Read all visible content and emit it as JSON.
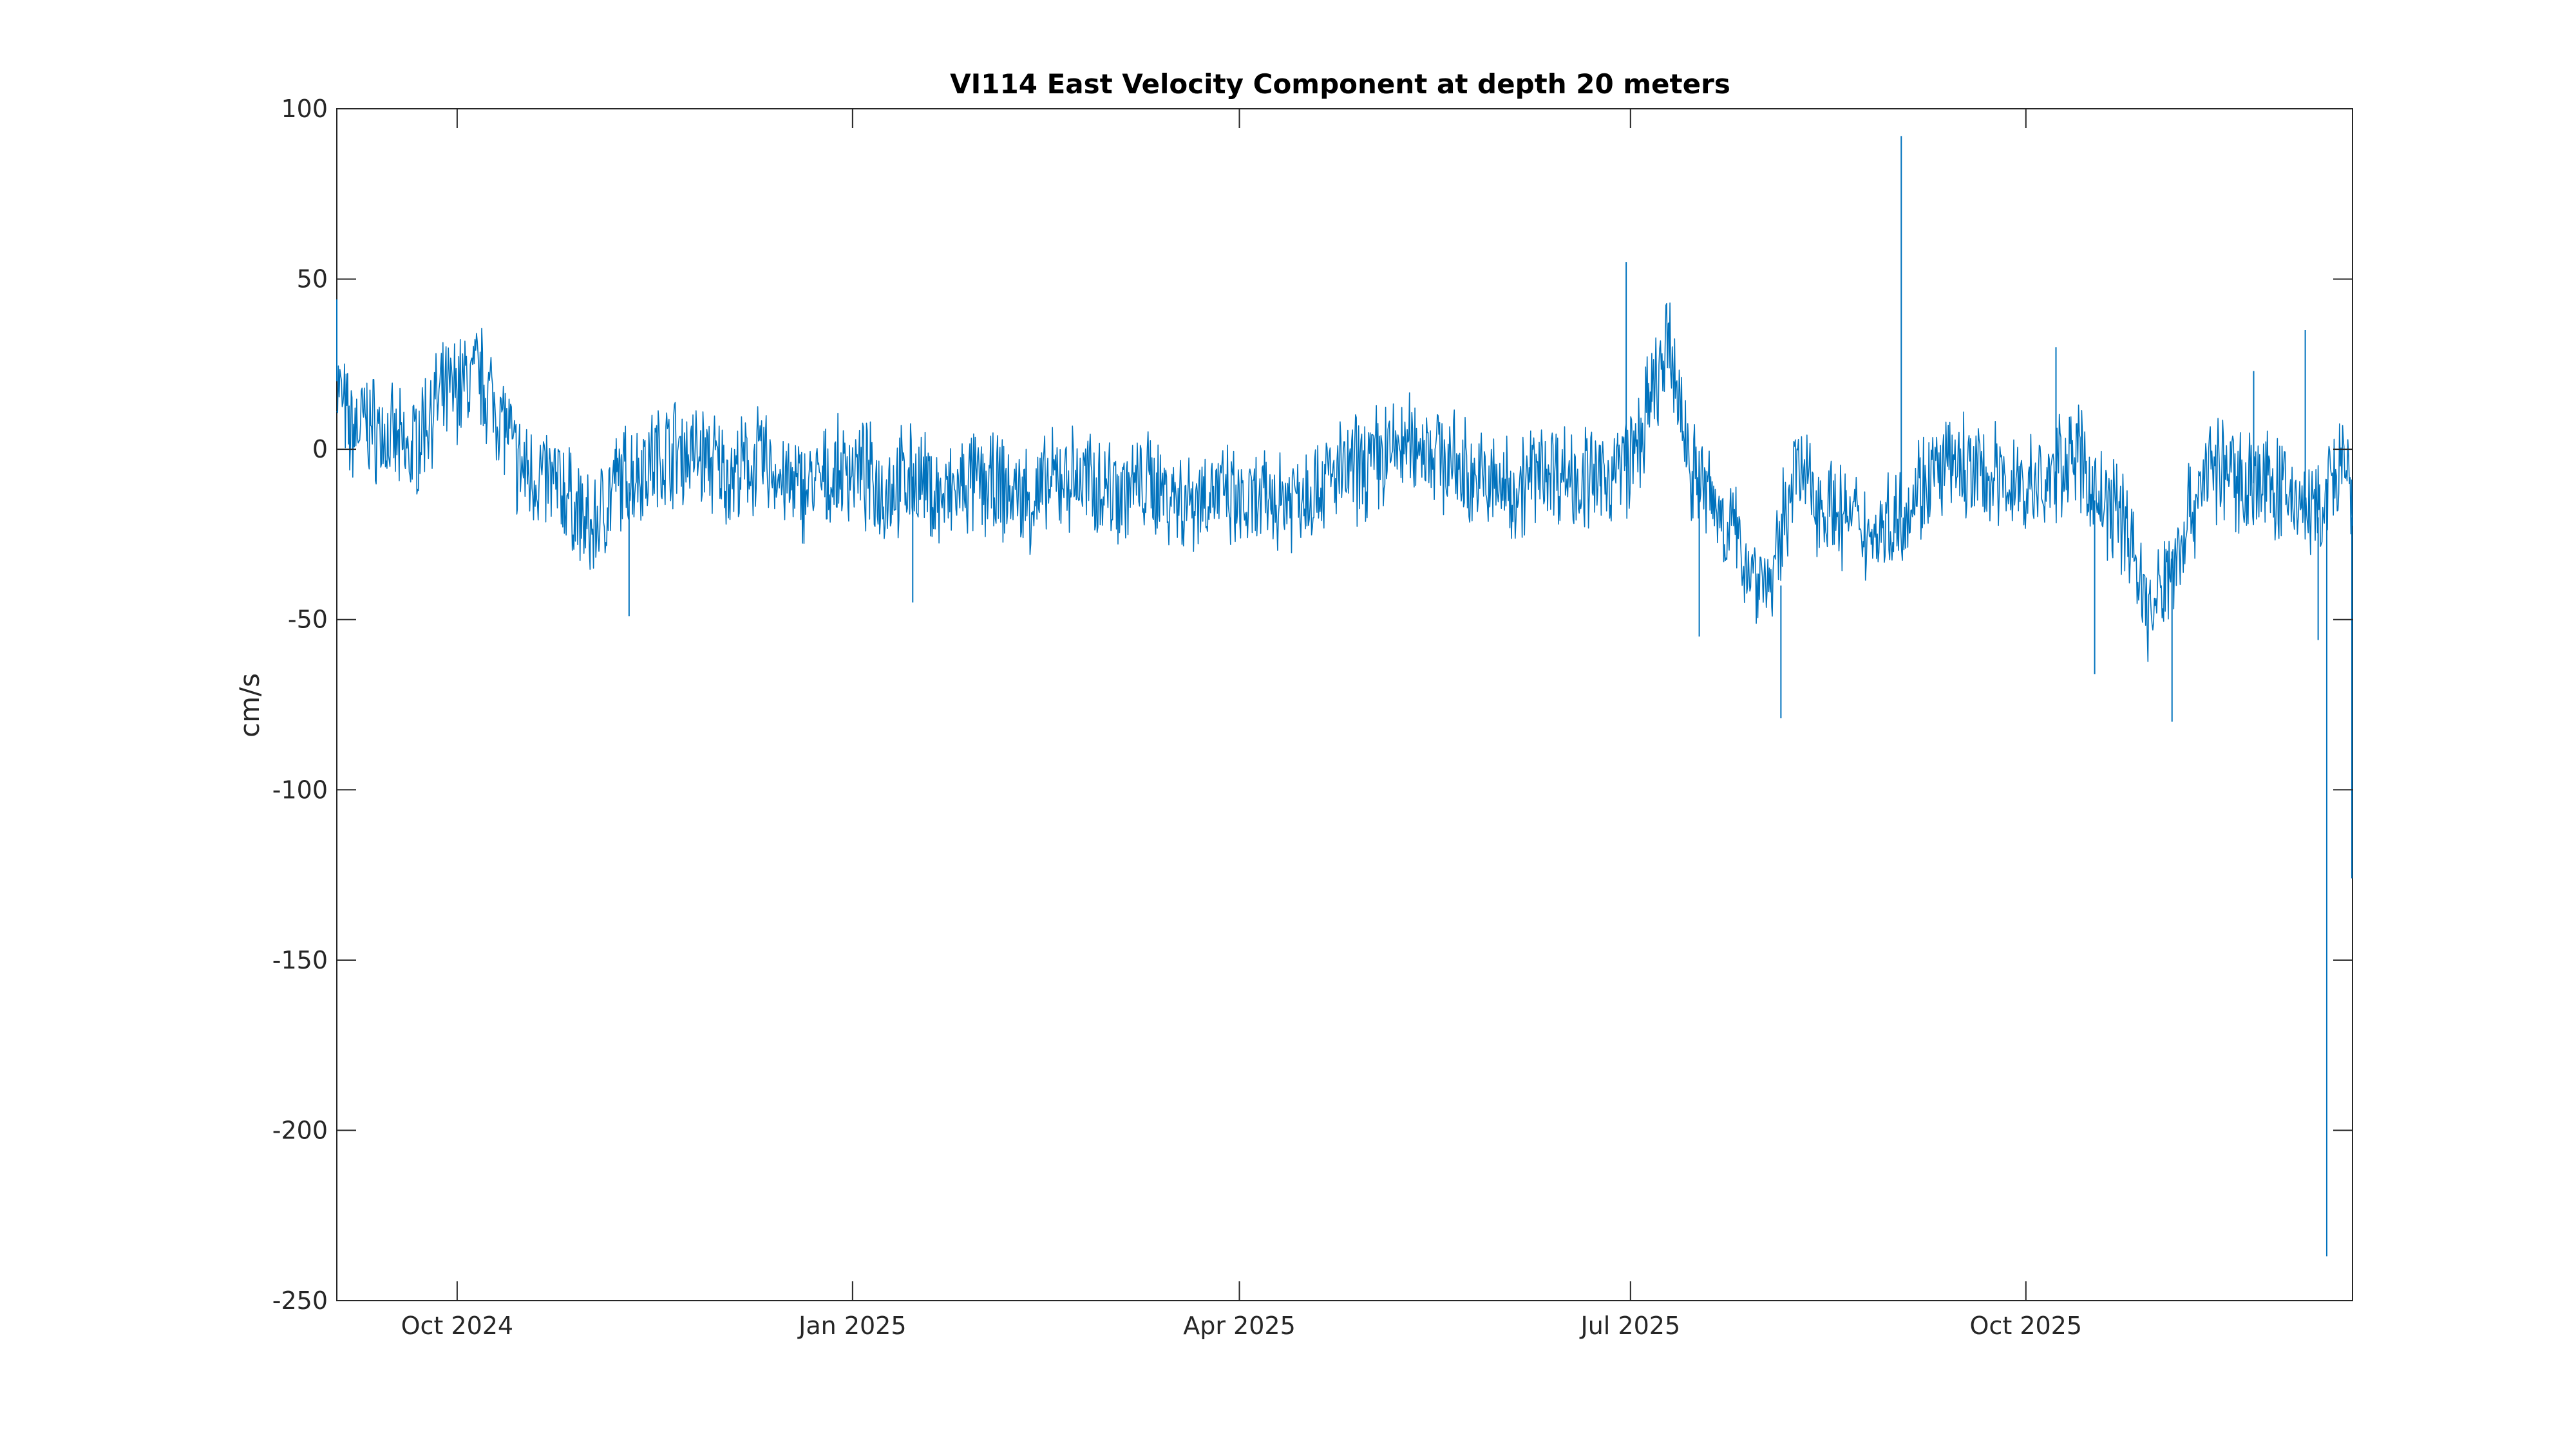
{
  "chart_data": {
    "type": "line",
    "title": "VI114 East Velocity Component at depth 20 meters",
    "xlabel": "",
    "ylabel": "cm/s",
    "xlim": [
      "2024-09-03",
      "2025-12-16"
    ],
    "ylim": [
      -250,
      100
    ],
    "x_ticks": [
      {
        "date": "2024-10-01",
        "label": "Oct 2024"
      },
      {
        "date": "2025-01-01",
        "label": "Jan 2025"
      },
      {
        "date": "2025-04-01",
        "label": "Apr 2025"
      },
      {
        "date": "2025-07-01",
        "label": "Jul 2025"
      },
      {
        "date": "2025-10-01",
        "label": "Oct 2025"
      }
    ],
    "y_ticks": [
      {
        "value": 100,
        "label": "100"
      },
      {
        "value": 50,
        "label": "50"
      },
      {
        "value": 0,
        "label": "0"
      },
      {
        "value": -50,
        "label": "-50"
      },
      {
        "value": -100,
        "label": "-100"
      },
      {
        "value": -150,
        "label": "-150"
      },
      {
        "value": -200,
        "label": "-200"
      },
      {
        "value": -250,
        "label": "-250"
      }
    ],
    "grid": false,
    "series_color": "#0072BD",
    "series": [
      {
        "x": [
          "2024-09-03",
          "2024-09-06",
          "2024-09-10",
          "2024-09-15",
          "2024-09-20",
          "2024-09-25",
          "2024-10-01",
          "2024-10-06",
          "2024-10-12",
          "2024-10-15",
          "2024-10-20",
          "2024-10-26",
          "2024-11-01",
          "2024-11-07",
          "2024-11-13",
          "2024-11-20",
          "2024-11-27",
          "2024-12-04",
          "2024-12-11",
          "2024-12-18",
          "2024-12-25",
          "2025-01-01",
          "2025-01-08",
          "2025-01-15",
          "2025-01-22",
          "2025-01-29",
          "2025-02-05",
          "2025-02-12",
          "2025-02-19",
          "2025-02-26",
          "2025-03-05",
          "2025-03-12",
          "2025-03-19",
          "2025-03-26",
          "2025-04-02",
          "2025-04-09",
          "2025-04-16",
          "2025-04-23",
          "2025-04-30",
          "2025-05-07",
          "2025-05-14",
          "2025-05-21",
          "2025-05-28",
          "2025-06-04",
          "2025-06-11",
          "2025-06-18",
          "2025-06-24",
          "2025-06-28",
          "2025-07-02",
          "2025-07-06",
          "2025-07-10",
          "2025-07-15",
          "2025-07-20",
          "2025-07-25",
          "2025-07-29",
          "2025-08-03",
          "2025-08-08",
          "2025-08-14",
          "2025-08-20",
          "2025-08-26",
          "2025-09-01",
          "2025-09-07",
          "2025-09-14",
          "2025-09-21",
          "2025-09-28",
          "2025-10-05",
          "2025-10-12",
          "2025-10-18",
          "2025-10-24",
          "2025-10-30",
          "2025-11-05",
          "2025-11-12",
          "2025-11-19",
          "2025-11-26",
          "2025-12-03",
          "2025-12-08",
          "2025-12-11",
          "2025-12-14",
          "2025-12-16"
        ],
        "y": [
          20,
          5,
          8,
          3,
          -2,
          12,
          18,
          22,
          8,
          -5,
          -8,
          -12,
          -25,
          -10,
          -5,
          0,
          -2,
          -8,
          -3,
          -12,
          -10,
          -5,
          -12,
          -8,
          -15,
          -10,
          -12,
          -15,
          -8,
          -10,
          -12,
          -10,
          -15,
          -12,
          -18,
          -15,
          -12,
          -8,
          -5,
          0,
          2,
          -5,
          -10,
          -12,
          -5,
          -8,
          -10,
          -5,
          -2,
          15,
          30,
          -5,
          -15,
          -25,
          -35,
          -40,
          -5,
          -15,
          -20,
          -25,
          -20,
          -10,
          -5,
          -8,
          -10,
          -12,
          0,
          -15,
          -20,
          -50,
          -30,
          -5,
          -8,
          -10,
          -15,
          -20,
          -10,
          -5,
          -20
        ],
        "spikes": [
          {
            "x": "2024-09-03",
            "y": 44
          },
          {
            "x": "2024-11-10",
            "y": -49
          },
          {
            "x": "2025-01-15",
            "y": -45
          },
          {
            "x": "2025-06-30",
            "y": 55
          },
          {
            "x": "2025-07-17",
            "y": -55
          },
          {
            "x": "2025-08-05",
            "y": -79
          },
          {
            "x": "2025-09-02",
            "y": 92
          },
          {
            "x": "2025-10-08",
            "y": 30
          },
          {
            "x": "2025-10-17",
            "y": -66
          },
          {
            "x": "2025-11-04",
            "y": -80
          },
          {
            "x": "2025-11-23",
            "y": 23
          },
          {
            "x": "2025-12-05",
            "y": 35
          },
          {
            "x": "2025-12-08",
            "y": -56
          },
          {
            "x": "2025-12-10",
            "y": -237
          },
          {
            "x": "2025-12-16",
            "y": -126
          }
        ]
      }
    ]
  }
}
